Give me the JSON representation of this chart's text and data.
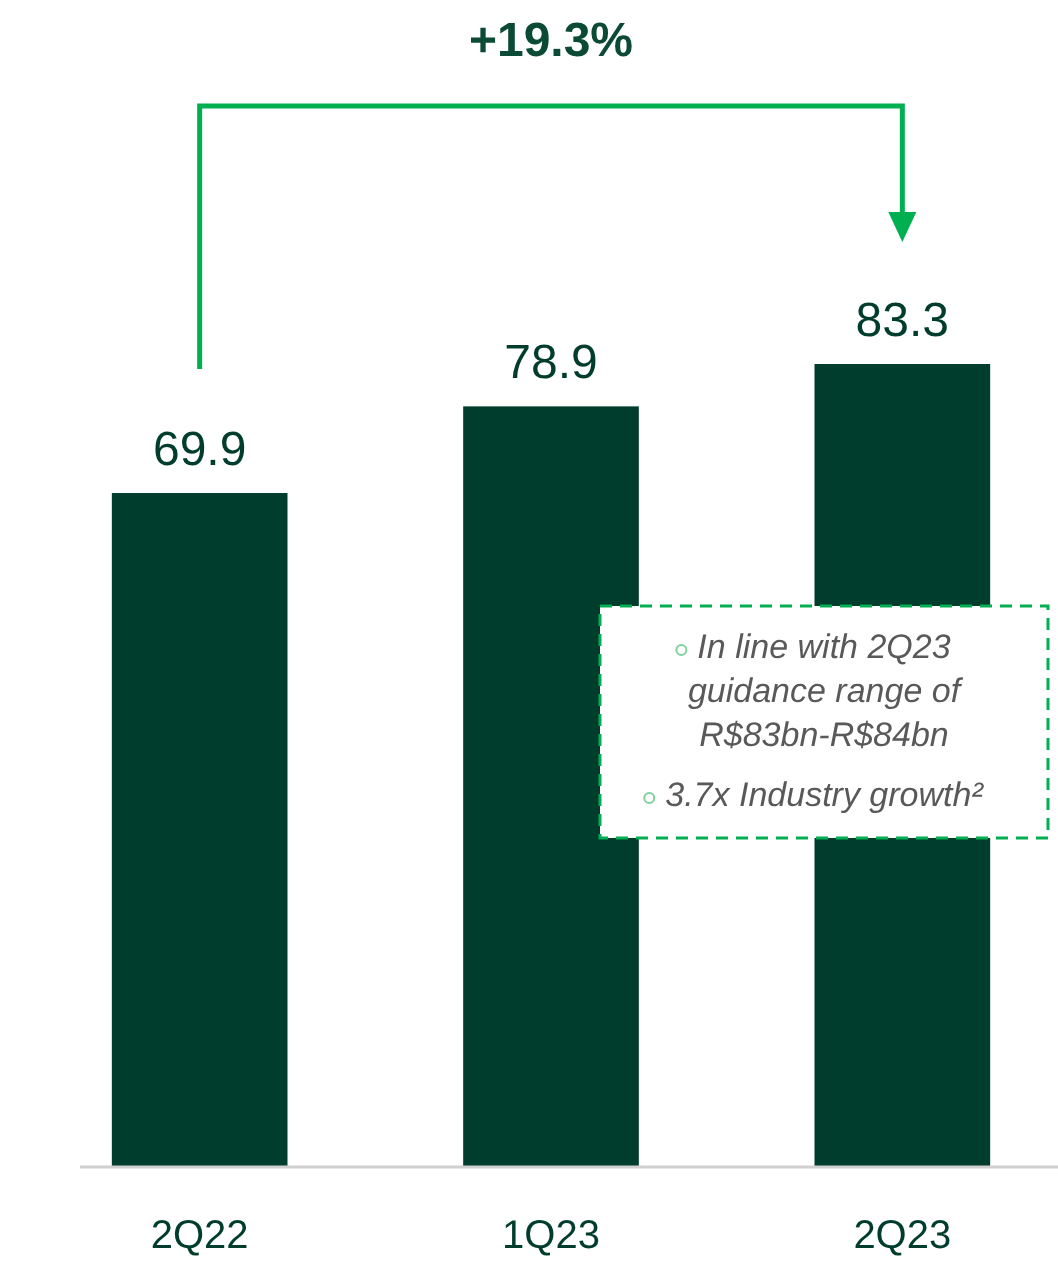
{
  "chart_data": {
    "type": "bar",
    "categories": [
      "2Q22",
      "1Q23",
      "2Q23"
    ],
    "values": [
      69.9,
      78.9,
      83.3
    ],
    "color": "#003d2d",
    "data_labels": true,
    "annotations": [
      "+19.3%",
      "In line with 2Q23 guidance range of R$83bn-R$84bn",
      "3.7x Industry growth²"
    ]
  }
}
